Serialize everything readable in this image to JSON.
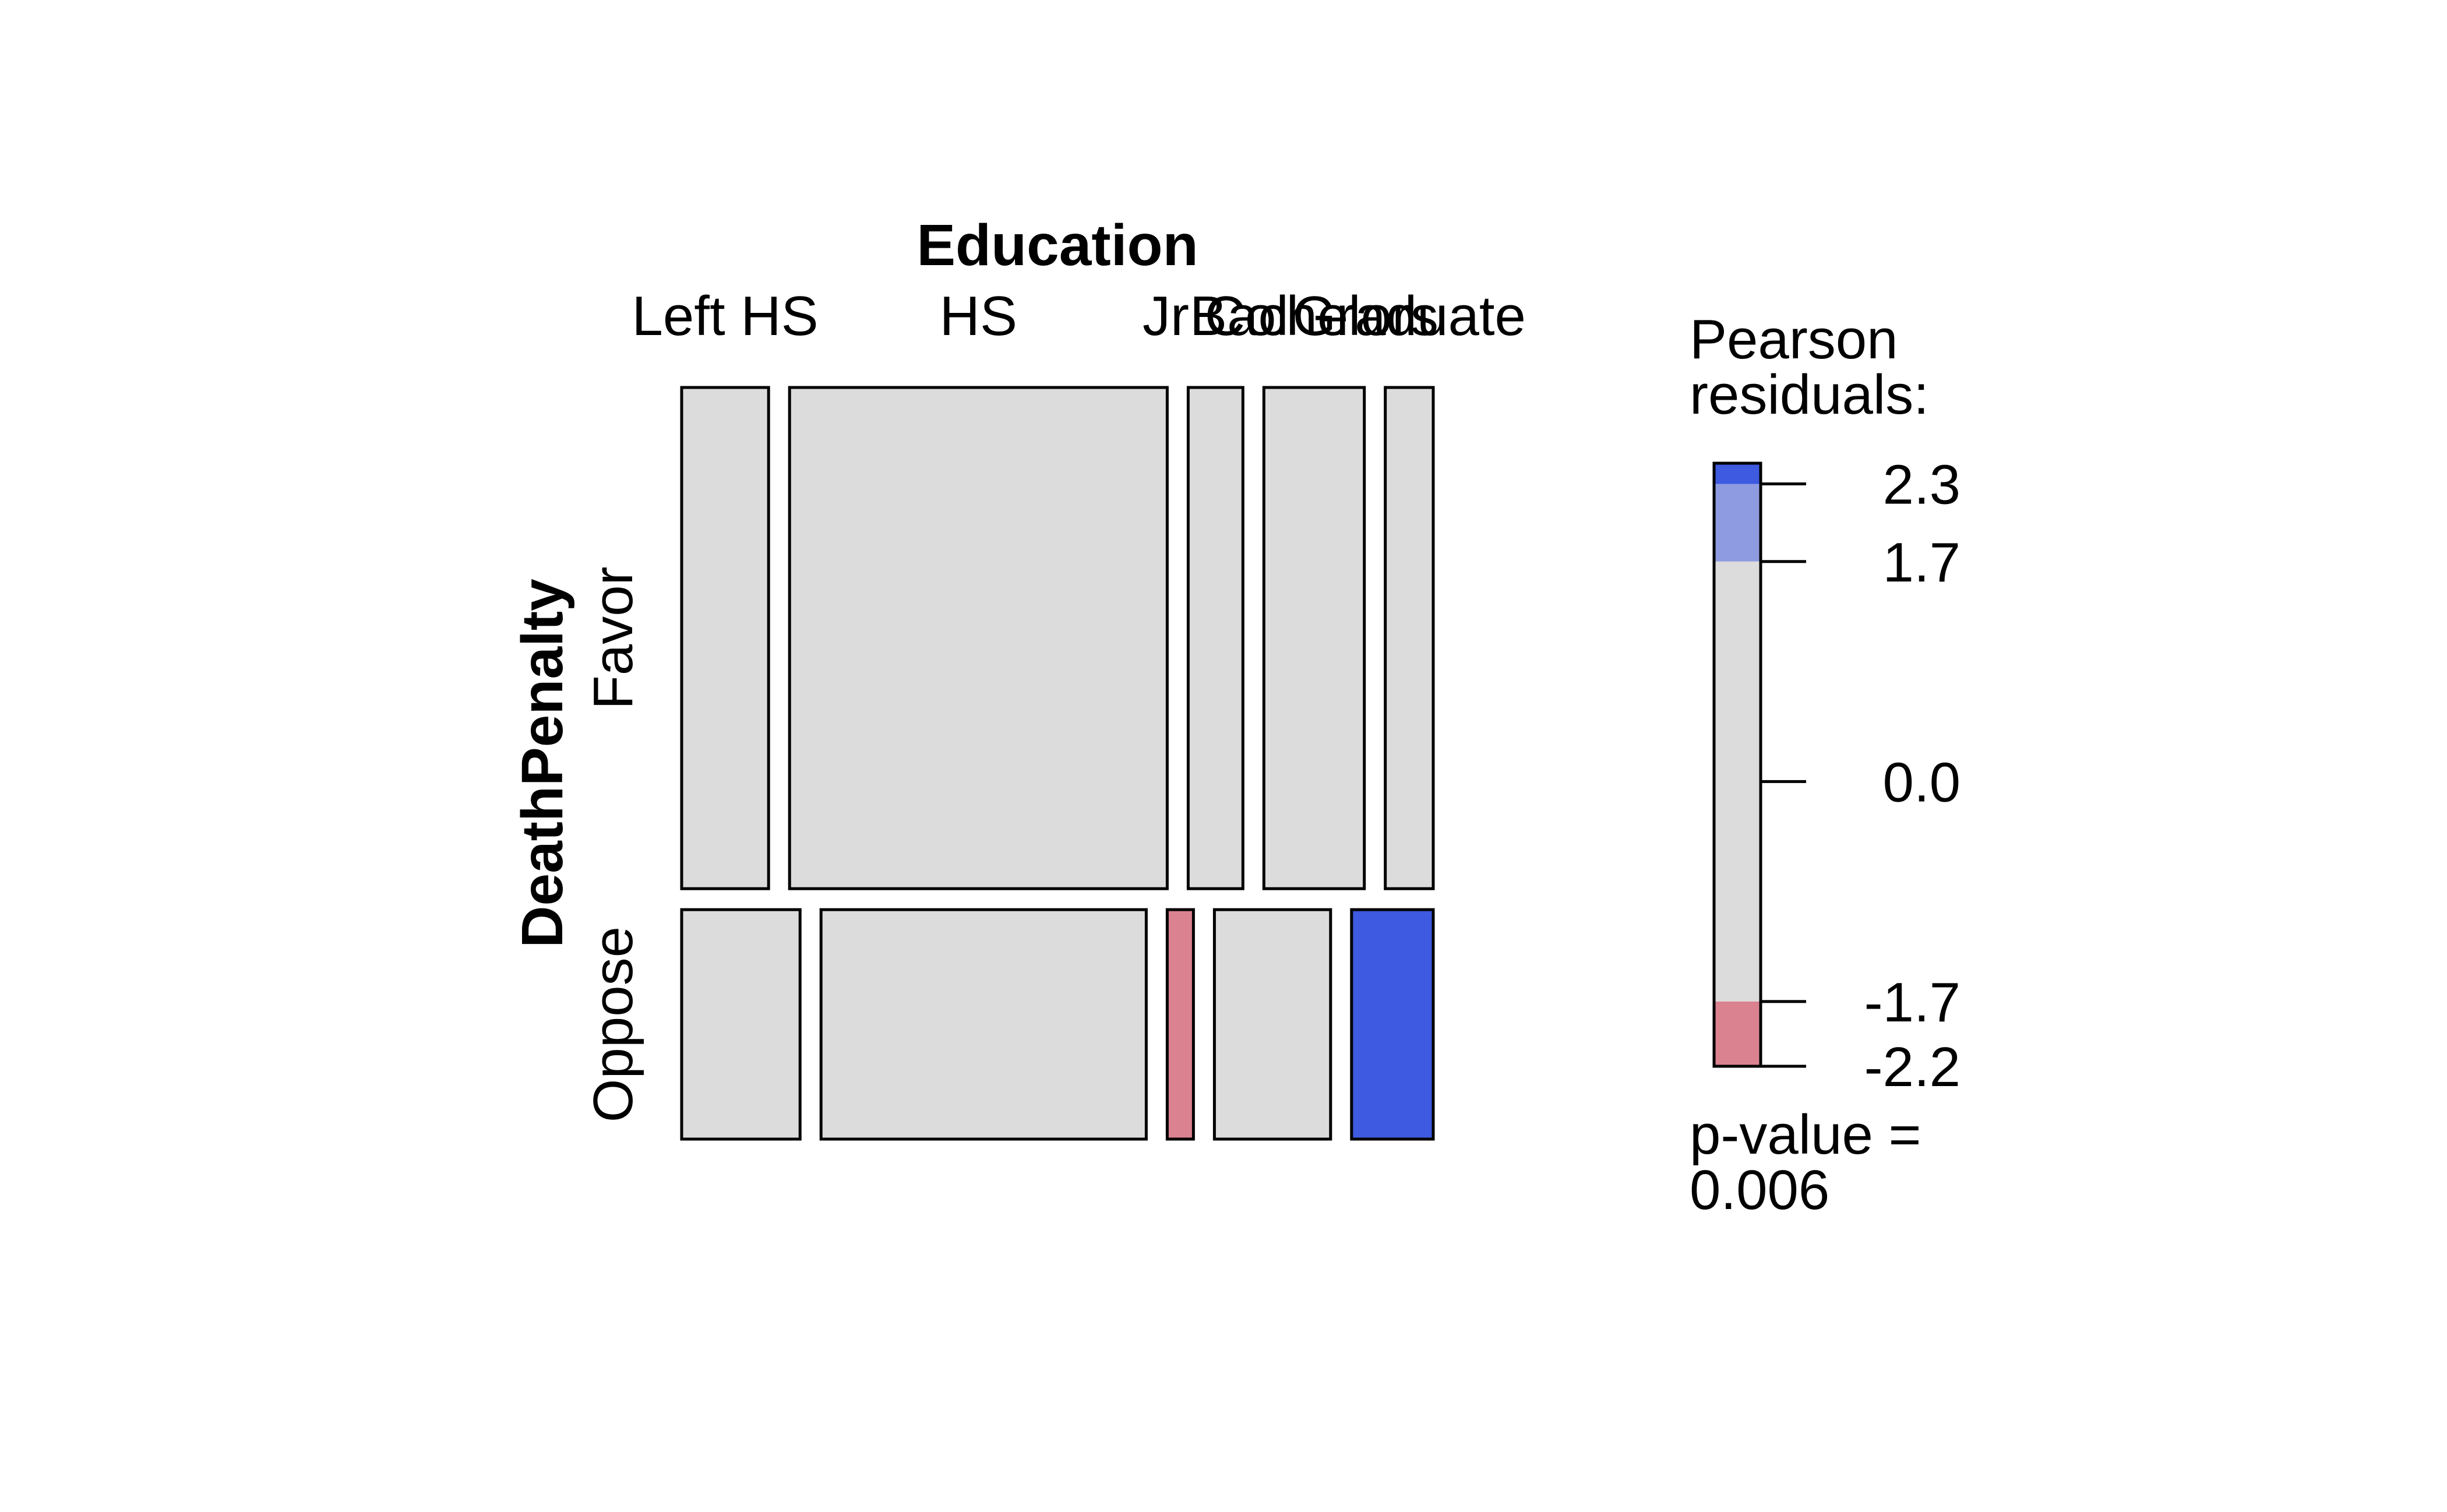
{
  "chart_data": {
    "type": "mosaic",
    "column_variable": "Education",
    "row_variable": "DeathPenalty",
    "columns": [
      "Left HS",
      "HS",
      "Jr Col",
      "Bachelors",
      "Graduate"
    ],
    "rows": [
      "Favor",
      "Oppose"
    ],
    "column_proportions": [
      0.138,
      0.463,
      0.081,
      0.163,
      0.11
    ],
    "favor_proportions_within_column": [
      0.69,
      0.7,
      0.7,
      0.7,
      0.7
    ],
    "favor_rows_by_column": [
      {
        "width": 0.116,
        "residual": 0.0
      },
      {
        "width": 0.504,
        "residual": 0.0
      },
      {
        "width": 0.073,
        "residual": 0.0
      },
      {
        "width": 0.134,
        "residual": 0.0
      },
      {
        "width": 0.064,
        "residual": 0.0
      }
    ],
    "oppose_rows_by_column": [
      {
        "width": 0.158,
        "residual": 0.0
      },
      {
        "width": 0.434,
        "residual": 0.0
      },
      {
        "width": 0.035,
        "residual": -2.0
      },
      {
        "width": 0.155,
        "residual": 0.0
      },
      {
        "width": 0.109,
        "residual": 2.4
      }
    ],
    "legend": {
      "title": "Pearson\nresiduals:",
      "ticks": [
        2.3,
        1.7,
        0.0,
        -1.7,
        -2.2
      ],
      "tick_labels": [
        "2.3",
        "1.7",
        "0.0",
        "-1.7",
        "-2.2"
      ],
      "range": [
        -2.2,
        2.46
      ],
      "bands": [
        {
          "from": 2.3,
          "to": 2.46,
          "color": "#3d5ae0"
        },
        {
          "from": 1.7,
          "to": 2.3,
          "color": "#8f9be0"
        },
        {
          "from": -1.7,
          "to": 1.7,
          "color": "#dcdcdc"
        },
        {
          "from": -2.2,
          "to": -1.7,
          "color": "#da8290"
        }
      ],
      "pvalue_text": "p-value =\n0.006"
    },
    "colors": {
      "neutral": "#dcdcdc",
      "positive_strong": "#3d5ae0",
      "positive_mild": "#8f9be0",
      "negative_mild": "#da8290",
      "outline": "#000000"
    }
  }
}
